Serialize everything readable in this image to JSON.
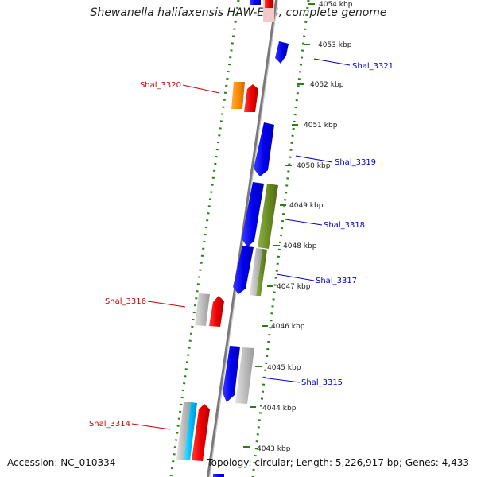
{
  "title": "Shewanella halifaxensis HAW-EB4, complete genome",
  "accession": "Accession: NC_010334",
  "summary": "Topology: circular; Length: 5,226,917 bp; Genes: 4,433",
  "colors": {
    "backbone": "#8a8a8a",
    "tick": "#2e7d1a",
    "blue": "#0000ee",
    "red": "#ee0000",
    "orange": "#ff8c00",
    "olive": "#6b8e23",
    "gray": "#b4b4b4",
    "cyan": "#00bfff",
    "label_forward": "#cc0000",
    "label_reverse": "#0000cc"
  },
  "scale_labels": [
    "4054 kbp",
    "4053 kbp",
    "4052 kbp",
    "4051 kbp",
    "4050 kbp",
    "4049 kbp",
    "4048 kbp",
    "4047 kbp",
    "4046 kbp",
    "4045 kbp",
    "4044 kbp",
    "4043 kbp"
  ],
  "gene_labels": [
    {
      "text": "Shal_3321",
      "strand": "reverse"
    },
    {
      "text": "Shal_3320",
      "strand": "forward"
    },
    {
      "text": "Shal_3319",
      "strand": "reverse"
    },
    {
      "text": "Shal_3318",
      "strand": "reverse"
    },
    {
      "text": "Shal_3317",
      "strand": "reverse"
    },
    {
      "text": "Shal_3316",
      "strand": "forward"
    },
    {
      "text": "Shal_3315",
      "strand": "reverse"
    },
    {
      "text": "Shal_3314",
      "strand": "forward"
    }
  ]
}
